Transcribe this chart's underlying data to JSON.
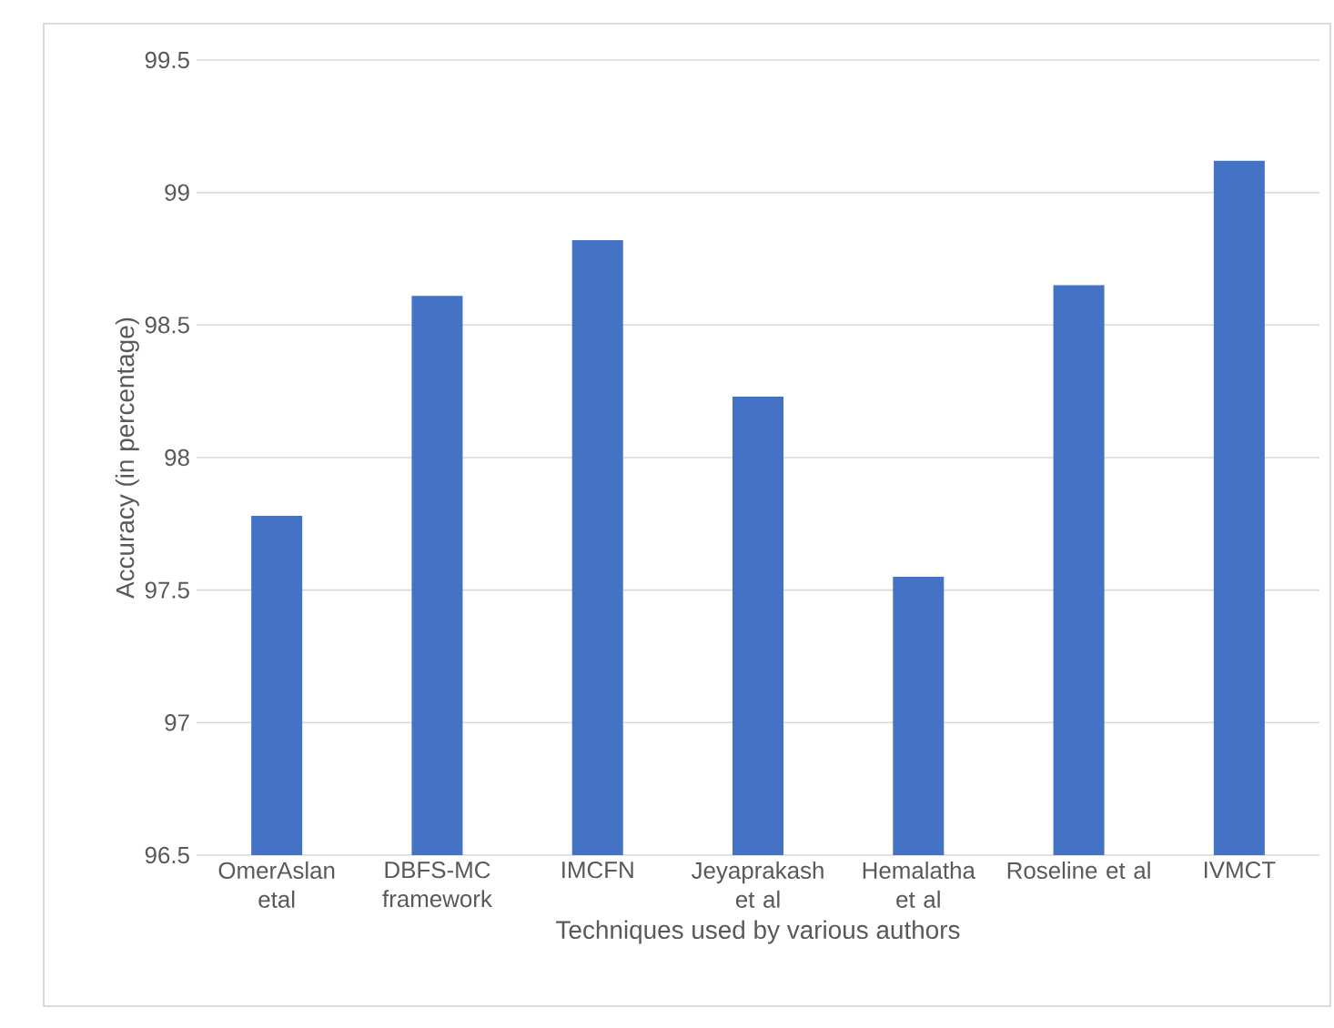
{
  "chart_data": {
    "type": "bar",
    "xlabel": "Techniques used by various authors",
    "ylabel": "Accuracy (in percentage)",
    "categories": [
      "OmerAslan etal",
      "DBFS-MC framework",
      "IMCFN",
      "Jeyaprakash et al",
      "Hemalatha et al",
      "Roseline et al",
      "IVMCT"
    ],
    "values": [
      97.78,
      98.61,
      98.82,
      98.23,
      97.55,
      98.65,
      99.12
    ],
    "color": "#4472c4",
    "ylim": [
      96.5,
      99.5
    ],
    "yticks": [
      96.5,
      97,
      97.5,
      98,
      98.5,
      99,
      99.5
    ],
    "grid": "y"
  }
}
